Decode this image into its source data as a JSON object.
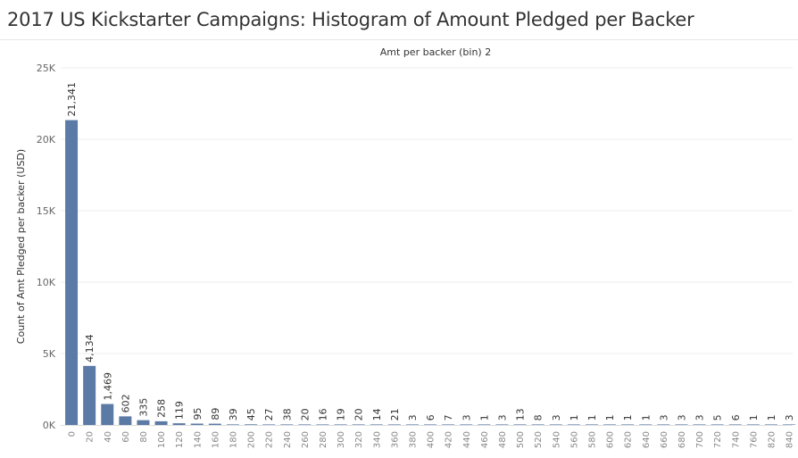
{
  "title": "2017 US Kickstarter Campaigns: Histogram of Amount Pledged per Backer",
  "chart_data": {
    "type": "bar",
    "title": "2017 US Kickstarter Campaigns: Histogram of Amount Pledged per Backer",
    "xlabel": "Amt per backer (bin) 2",
    "ylabel": "Count of Amt Pledged per backer (USD)",
    "ylim": [
      0,
      25000
    ],
    "yticks": [
      0,
      5000,
      10000,
      15000,
      20000,
      25000
    ],
    "ytick_labels": [
      "0K",
      "5K",
      "10K",
      "15K",
      "20K",
      "25K"
    ],
    "grid": true,
    "bar_color": "#5b7aa6",
    "categories": [
      "0",
      "20",
      "40",
      "60",
      "80",
      "100",
      "120",
      "140",
      "160",
      "180",
      "200",
      "220",
      "240",
      "260",
      "280",
      "300",
      "320",
      "340",
      "360",
      "380",
      "400",
      "420",
      "440",
      "460",
      "480",
      "500",
      "520",
      "540",
      "560",
      "580",
      "600",
      "620",
      "640",
      "660",
      "680",
      "700",
      "720",
      "740",
      "760",
      "820",
      "840"
    ],
    "values": [
      21341,
      4134,
      1469,
      602,
      335,
      258,
      119,
      95,
      89,
      39,
      45,
      27,
      38,
      20,
      16,
      19,
      20,
      14,
      21,
      3,
      6,
      7,
      3,
      1,
      3,
      13,
      8,
      3,
      1,
      1,
      1,
      1,
      1,
      3,
      3,
      3,
      5,
      6,
      1,
      1,
      3
    ],
    "data_labels": [
      "21,341",
      "4,134",
      "1,469",
      "602",
      "335",
      "258",
      "119",
      "95",
      "89",
      "39",
      "45",
      "27",
      "38",
      "20",
      "16",
      "19",
      "20",
      "14",
      "21",
      "3",
      "6",
      "7",
      "3",
      "1",
      "3",
      "13",
      "8",
      "3",
      "1",
      "1",
      "1",
      "1",
      "1",
      "3",
      "3",
      "3",
      "5",
      "6",
      "1",
      "1",
      "3"
    ]
  }
}
